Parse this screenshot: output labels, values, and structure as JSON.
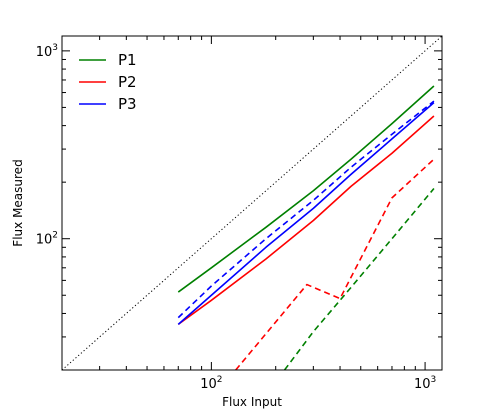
{
  "chart_data": {
    "type": "line",
    "title": "",
    "xlabel": "Flux Input",
    "ylabel": "Flux Measured",
    "xscale": "log",
    "yscale": "log",
    "xlim": [
      20,
      1200
    ],
    "ylim": [
      20,
      1200
    ],
    "x_ticks": [
      {
        "value": 100,
        "base": "10",
        "exp": "2"
      },
      {
        "value": 1000,
        "base": "10",
        "exp": "3"
      }
    ],
    "y_ticks": [
      {
        "value": 100,
        "base": "10",
        "exp": "2"
      },
      {
        "value": 1000,
        "base": "10",
        "exp": "3"
      }
    ],
    "grid": false,
    "legend_position": "top-left",
    "reference_line": {
      "style": "dotted",
      "color": "#000000",
      "x": [
        20,
        1200
      ],
      "y": [
        20,
        1200
      ]
    },
    "series": [
      {
        "name": "P1",
        "color": "#008000",
        "style": "solid",
        "x": [
          70,
          100,
          180,
          300,
          450,
          700,
          1100
        ],
        "y": [
          52,
          70,
          115,
          180,
          265,
          410,
          650
        ]
      },
      {
        "name": "P2",
        "color": "#ff0000",
        "style": "solid",
        "x": [
          70,
          100,
          180,
          300,
          450,
          700,
          1100
        ],
        "y": [
          35,
          47,
          78,
          125,
          190,
          285,
          450
        ]
      },
      {
        "name": "P3",
        "color": "#0000ff",
        "style": "solid",
        "x": [
          70,
          100,
          180,
          300,
          450,
          700,
          1100
        ],
        "y": [
          35,
          50,
          90,
          145,
          220,
          340,
          530
        ]
      },
      {
        "name": "",
        "color": "#0000ff",
        "style": "dashed",
        "x": [
          70,
          100,
          180,
          300,
          450,
          700,
          1100
        ],
        "y": [
          38,
          56,
          100,
          160,
          240,
          360,
          540
        ]
      },
      {
        "name": "",
        "color": "#ff0000",
        "style": "dashed",
        "x": [
          130,
          280,
          400,
          700,
          1100
        ],
        "y": [
          20,
          57,
          48,
          165,
          265
        ]
      },
      {
        "name": "",
        "color": "#008000",
        "style": "dashed",
        "x": [
          220,
          300,
          450,
          700,
          1100
        ],
        "y": [
          20,
          32,
          55,
          100,
          185
        ]
      }
    ]
  }
}
